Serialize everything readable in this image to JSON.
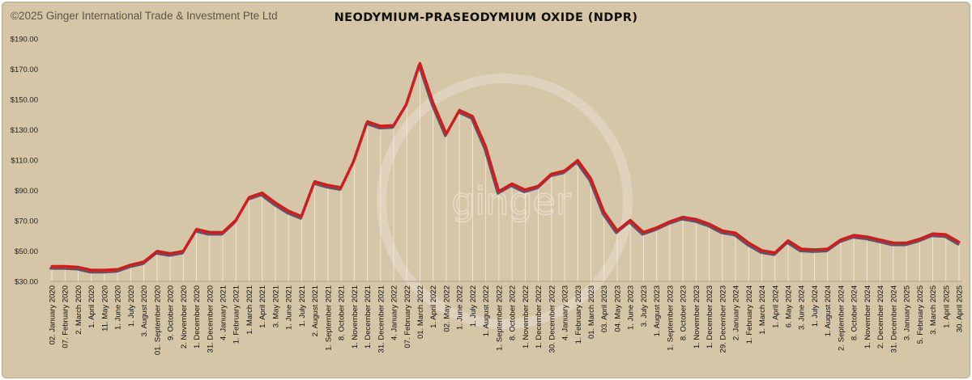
{
  "copyright": "©2025 Ginger International Trade & Investment Pte Ltd",
  "watermark": "ginger",
  "colors": {
    "background": "#d6c6a8",
    "line": "#e0141a",
    "shadow": "#4a3f52",
    "droplines": "#f2ece0"
  },
  "chart_data": {
    "type": "line",
    "title": "NEODYMIUM-PRASEODYMIUM OXIDE (NDPR)",
    "xlabel": "",
    "ylabel": "",
    "ylim": [
      30,
      190
    ],
    "y_ticks": [
      "$190.00",
      "$170.00",
      "$150.00",
      "$130.00",
      "$110.00",
      "$90.00",
      "$70.00",
      "$50.00",
      "$30.00"
    ],
    "grid": false,
    "legend": "none",
    "x": [
      "02. January 2020",
      "07. February 2020",
      "2. March 2020",
      "1. April 2020",
      "11. May 2020",
      "1. June 2020",
      "1. July 2020",
      "3. August 2020",
      "01. September 2020",
      "9. October 2020",
      "2. November 2020",
      "1. December 2020",
      "31. December 2020",
      "4. January 2021",
      "1. February 2021",
      "1. March 2021",
      "1. April 2021",
      "3. May 2021",
      "1. June 2021",
      "1. July 2021",
      "2. August 2021",
      "1. September 2021",
      "8. October 2021",
      "1. November 2021",
      "1. December 2021",
      "31. December 2021",
      "4. January 2022",
      "07. February 2022",
      "01. March 2022",
      "1. April 2022",
      "02. May 2022",
      "1. June 2022",
      "1. July 2022",
      "1. August 2022",
      "1. September 2022",
      "8. October 2022",
      "1. November 2022",
      "1. December 2022",
      "30. December 2022",
      "4. January 2023",
      "1. February 2023",
      "01. March 2023",
      "03. April 2023",
      "04. May 2023",
      "1. June 2023",
      "3. July 2023",
      "1. August 2023",
      "1. September 2023",
      "8. October 2023",
      "1. November 2023",
      "1. December 2023",
      "29. December 2023",
      "2. January 2024",
      "1. February 2024",
      "1. March 2024",
      "1. April 2024",
      "6. May 2024",
      "3. June 2024",
      "1. July 2024",
      "1. August 2024",
      "2. September 2024",
      "8. October 2024",
      "1. November 2024",
      "2. December 2024",
      "31. December 2024",
      "3. January 2025",
      "5. February 2025",
      "3. March 2025",
      "1. April 2025",
      "30. April 2025"
    ],
    "series": [
      {
        "values": [
          40,
          40,
          39.5,
          37.5,
          37.5,
          38,
          41,
          43,
          50,
          48.5,
          50,
          64.5,
          62.5,
          62.5,
          70.5,
          85.5,
          88.5,
          82,
          76.5,
          73,
          96,
          93.5,
          92,
          110,
          135.5,
          132.5,
          133,
          147.5,
          174,
          148,
          127.5,
          143,
          139,
          119,
          89.5,
          94.5,
          90.5,
          93,
          101,
          103,
          110,
          98,
          76,
          63.5,
          70.5,
          62.5,
          65.5,
          69.5,
          72.5,
          71,
          68,
          63.5,
          62,
          55.5,
          50.5,
          49,
          57,
          51.5,
          51,
          51.5,
          57.5,
          60.5,
          59.5,
          57.5,
          55.5,
          55.5,
          58,
          61.5,
          61,
          56
        ]
      }
    ]
  }
}
